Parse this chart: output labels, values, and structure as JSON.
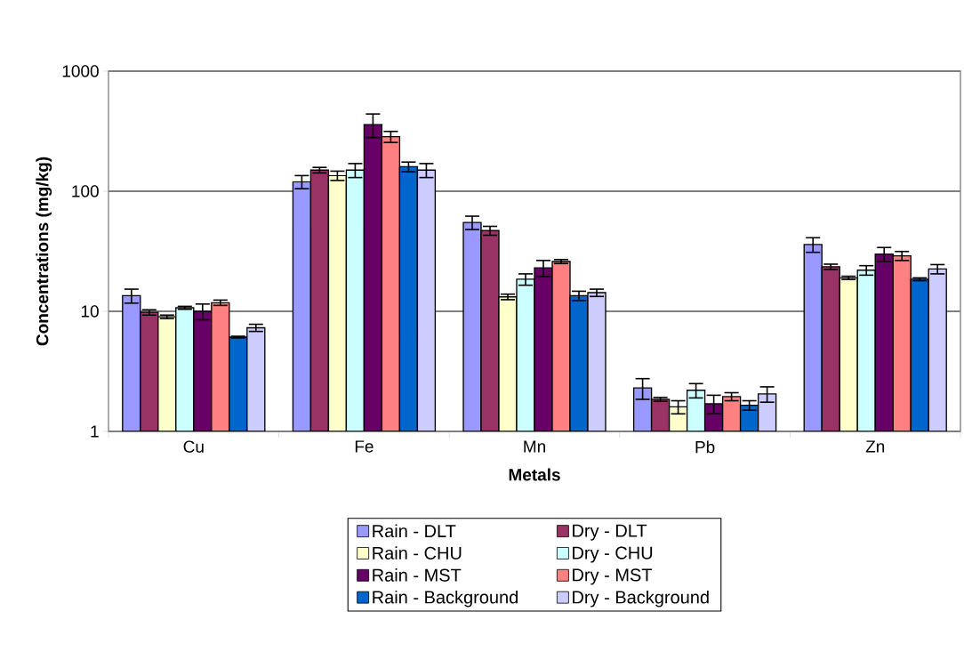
{
  "chart_data": {
    "type": "bar",
    "xlabel": "Metals",
    "ylabel": "Concentrations (mg/kg)",
    "categories": [
      "Cu",
      "Fe",
      "Mn",
      "Pb",
      "Zn"
    ],
    "series": [
      {
        "name": "Rain - DLT",
        "color": "#9999ff",
        "values": [
          13.5,
          120,
          55,
          2.3,
          36
        ],
        "errors": [
          1.8,
          15,
          7,
          0.45,
          5
        ]
      },
      {
        "name": "Dry - DLT",
        "color": "#993366",
        "values": [
          9.8,
          150,
          47,
          1.85,
          23.5
        ],
        "errors": [
          0.5,
          8,
          4,
          0.07,
          1.2
        ]
      },
      {
        "name": "Rain - CHU",
        "color": "#ffffcc",
        "values": [
          9.0,
          135,
          13.2,
          1.6,
          19
        ],
        "errors": [
          0.3,
          12,
          0.7,
          0.2,
          0.6
        ]
      },
      {
        "name": "Dry - CHU",
        "color": "#ccffff",
        "values": [
          10.7,
          150,
          18.5,
          2.2,
          22
        ],
        "errors": [
          0.3,
          20,
          2,
          0.3,
          2
        ]
      },
      {
        "name": "Rain - MST",
        "color": "#660066",
        "values": [
          10,
          360,
          23,
          1.7,
          30
        ],
        "errors": [
          1.5,
          80,
          3.5,
          0.3,
          4
        ]
      },
      {
        "name": "Dry - MST",
        "color": "#ff8080",
        "values": [
          11.8,
          285,
          26,
          1.95,
          29
        ],
        "errors": [
          0.6,
          30,
          1,
          0.15,
          2.5
        ]
      },
      {
        "name": "Rain - Background",
        "color": "#0066cc",
        "values": [
          6.1,
          160,
          13.5,
          1.65,
          18.5
        ],
        "errors": [
          0.1,
          15,
          1.2,
          0.15,
          0.5
        ]
      },
      {
        "name": "Dry - Background",
        "color": "#ccccff",
        "values": [
          7.3,
          150,
          14.3,
          2.05,
          22.5
        ],
        "errors": [
          0.5,
          20,
          1,
          0.3,
          2
        ]
      }
    ],
    "log": true,
    "ylim": [
      1,
      1000
    ],
    "yticks": [
      1,
      10,
      100,
      1000
    ],
    "grid": "y",
    "legend": "bottom"
  }
}
